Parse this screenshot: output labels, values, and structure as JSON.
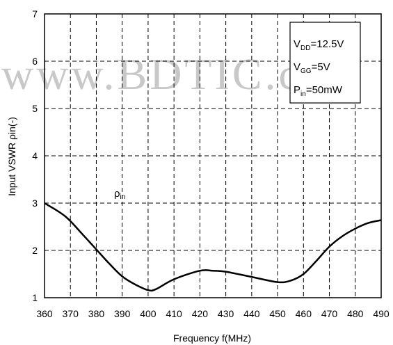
{
  "watermark": "www.BDTIC.c",
  "chart_data": {
    "type": "line",
    "title": "",
    "xlabel": "Frequency f(MHz)",
    "ylabel": "Input VSWR ρin(-)",
    "xlim": [
      360,
      490
    ],
    "ylim": [
      1,
      7
    ],
    "x_ticks": [
      360,
      370,
      380,
      390,
      400,
      410,
      420,
      430,
      440,
      450,
      460,
      470,
      480,
      490
    ],
    "y_ticks": [
      1,
      2,
      3,
      4,
      5,
      6,
      7
    ],
    "grid": true,
    "line_color": "#000000",
    "series": [
      {
        "name": "ρin",
        "x": [
          360,
          368,
          375,
          380,
          385,
          390,
          395,
          400,
          403,
          410,
          420,
          425,
          430,
          440,
          450,
          455,
          460,
          465,
          470,
          475,
          480,
          485,
          490
        ],
        "y": [
          3.0,
          2.72,
          2.32,
          2.02,
          1.72,
          1.45,
          1.28,
          1.16,
          1.18,
          1.39,
          1.57,
          1.57,
          1.55,
          1.44,
          1.33,
          1.36,
          1.5,
          1.78,
          2.08,
          2.3,
          2.46,
          2.58,
          2.64
        ]
      }
    ],
    "annotations": {
      "curve_label": {
        "main": "ρ",
        "sub": "in"
      },
      "conditions": [
        {
          "main": "V",
          "sub": "DD",
          "rest": "=12.5V"
        },
        {
          "main": "V",
          "sub": "GG",
          "rest": "=5V"
        },
        {
          "main": "P",
          "sub": "in",
          "rest": "=50mW"
        }
      ]
    }
  }
}
